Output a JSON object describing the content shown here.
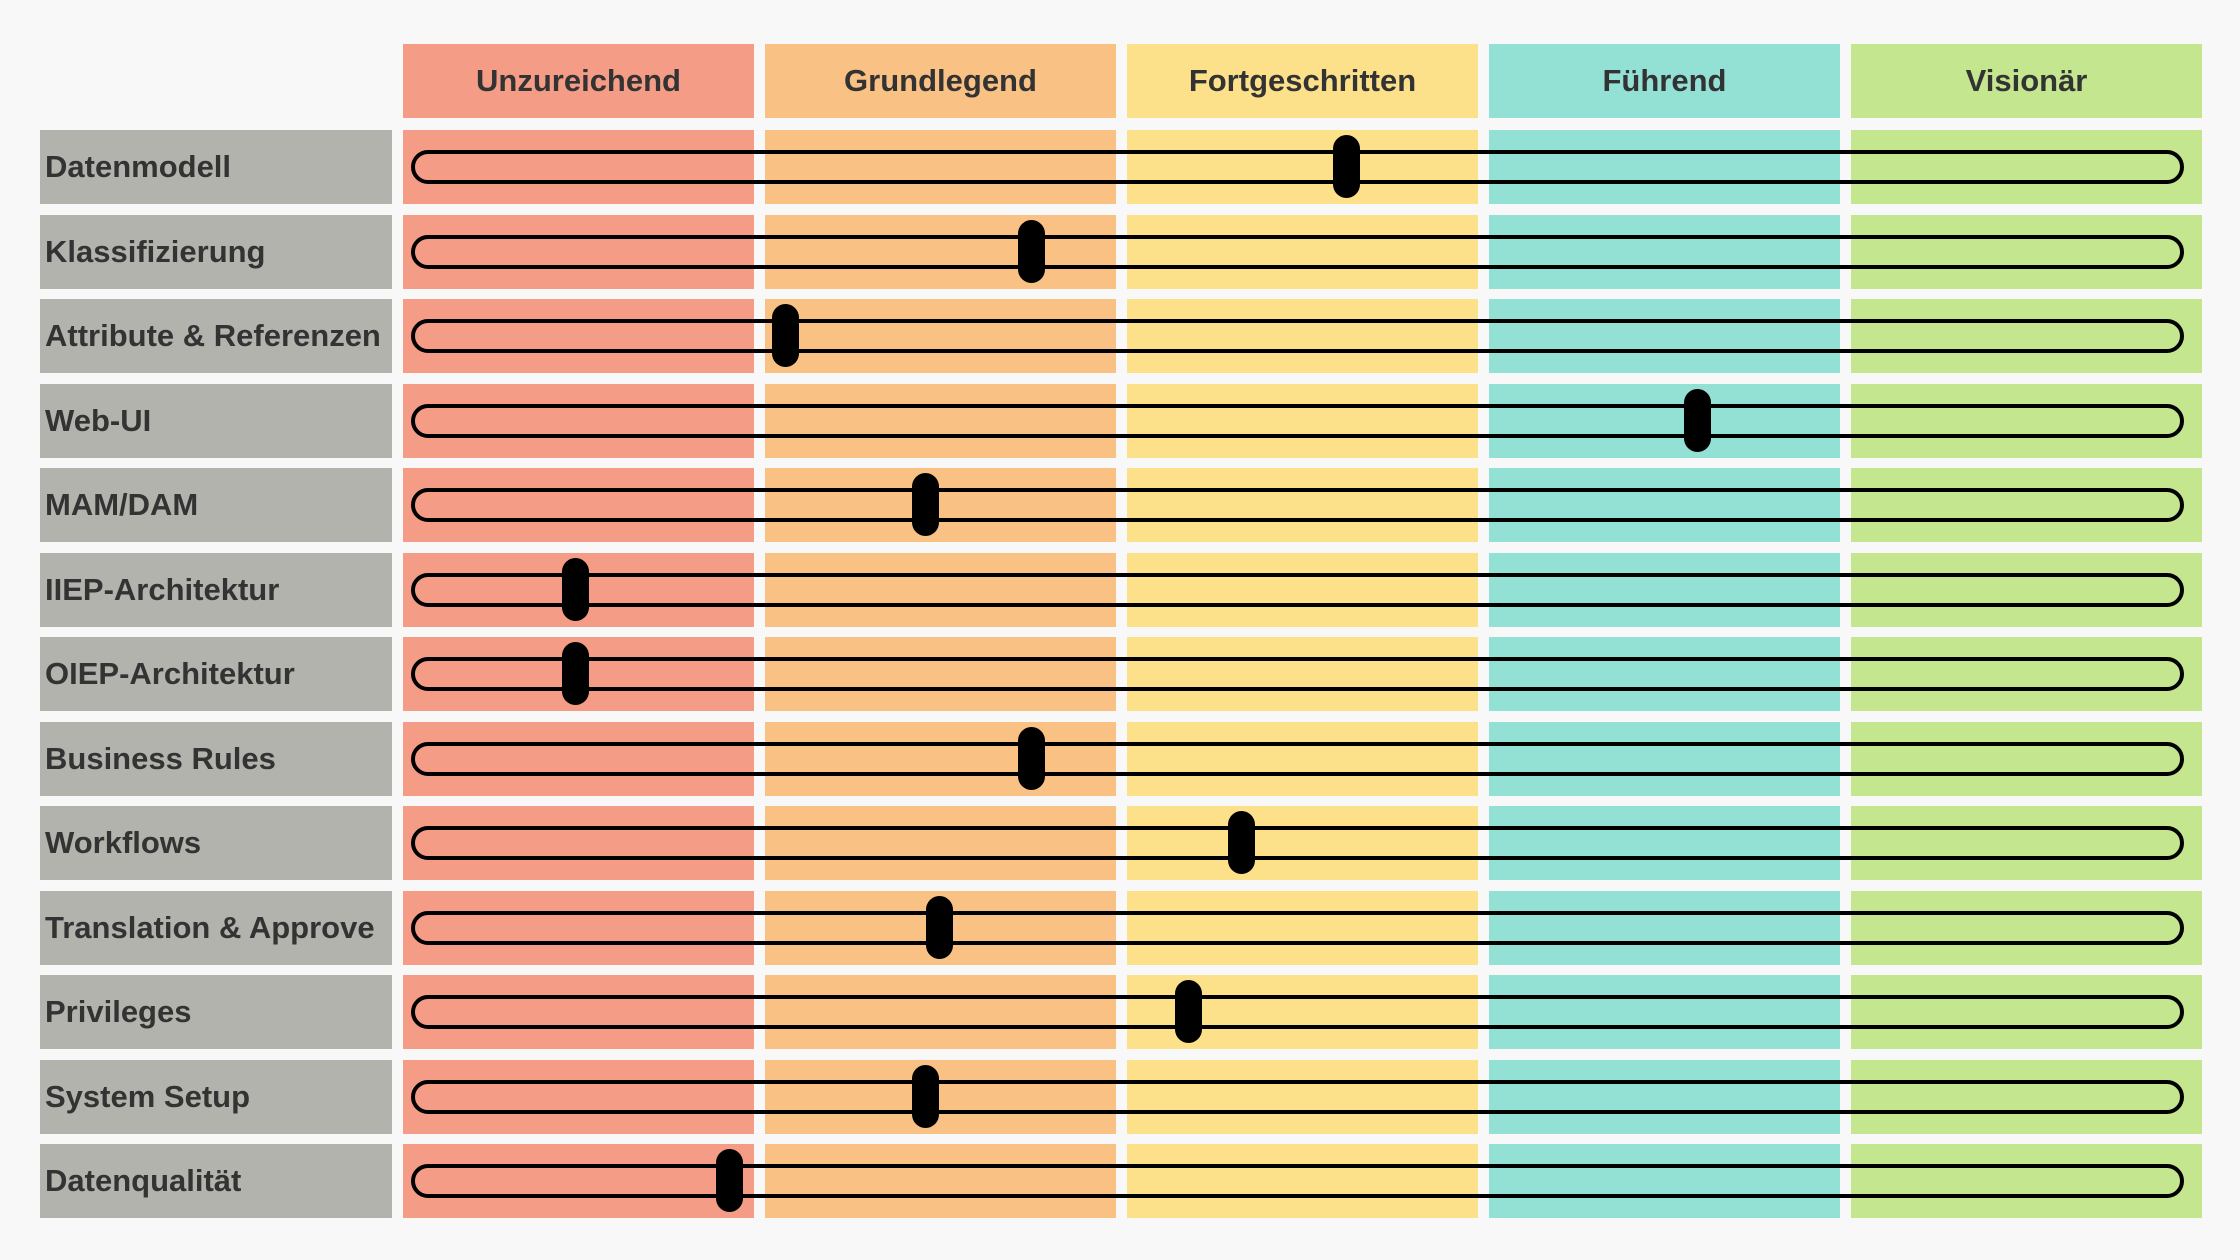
{
  "chart_data": {
    "type": "table",
    "levels": [
      {
        "label": "Unzureichend",
        "header_color": "#f59c86",
        "band_color": "#f59c86"
      },
      {
        "label": "Grundlegend",
        "header_color": "#f9c184",
        "band_color": "#f9c184"
      },
      {
        "label": "Fortgeschritten",
        "header_color": "#fde08a",
        "band_color": "#fde08a"
      },
      {
        "label": "Führend",
        "header_color": "#93e0d5",
        "band_color": "#93e0d5"
      },
      {
        "label": "Visionär",
        "header_color": "#c3e68f",
        "band_color": "#c3e68f"
      }
    ],
    "scale": {
      "min": 0,
      "max": 5
    },
    "rows": [
      {
        "label": "Datenmodell",
        "value": 2.64
      },
      {
        "label": "Klassifizierung",
        "value": 1.74
      },
      {
        "label": "Attribute & Referenzen",
        "value": 1.04
      },
      {
        "label": "Web-UI",
        "value": 3.64
      },
      {
        "label": "MAM/DAM",
        "value": 1.44
      },
      {
        "label": "IIEP-Architektur",
        "value": 0.44
      },
      {
        "label": "OIEP-Architektur",
        "value": 0.44
      },
      {
        "label": "Business Rules",
        "value": 1.74
      },
      {
        "label": "Workflows",
        "value": 2.34
      },
      {
        "label": "Translation & Approve",
        "value": 1.48
      },
      {
        "label": "Privileges",
        "value": 2.19
      },
      {
        "label": "System Setup",
        "value": 1.44
      },
      {
        "label": "Datenqualität",
        "value": 0.88
      }
    ],
    "label_bg_color": "#b3b3ae",
    "knob_color": "#000000"
  }
}
